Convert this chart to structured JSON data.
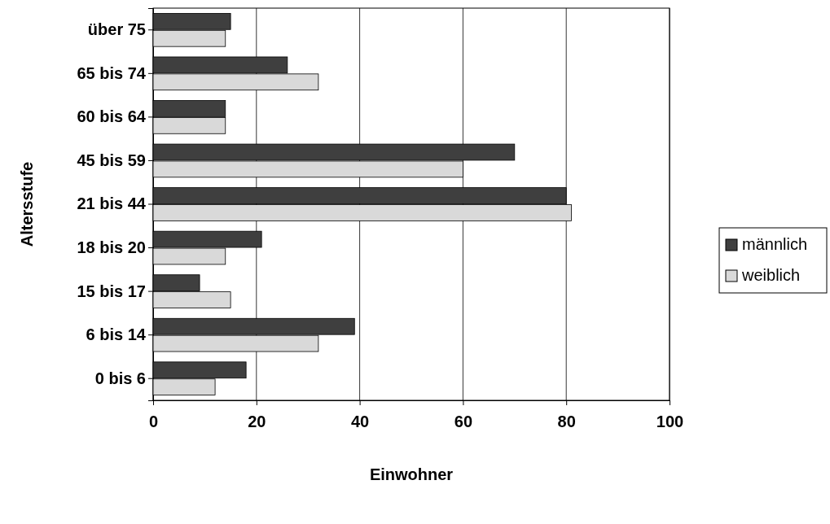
{
  "chart_data": {
    "type": "bar",
    "orientation": "horizontal",
    "xlabel": "Einwohner",
    "ylabel": "Altersstufe",
    "categories": [
      "über 75",
      "65 bis 74",
      "60 bis 64",
      "45 bis 59",
      "21 bis 44",
      "18 bis 20",
      "15 bis 17",
      "6 bis 14",
      "0 bis 6"
    ],
    "series": [
      {
        "name": "männlich",
        "color": "#3f3f3f",
        "values": [
          15,
          26,
          14,
          70,
          80,
          21,
          9,
          39,
          18
        ]
      },
      {
        "name": "weiblich",
        "color": "#d9d9d9",
        "values": [
          14,
          32,
          14,
          60,
          81,
          14,
          15,
          32,
          12
        ]
      }
    ],
    "xlim": [
      0,
      100
    ],
    "xticks": [
      0,
      20,
      40,
      60,
      80,
      100
    ],
    "grid": "x",
    "legend": "right"
  }
}
